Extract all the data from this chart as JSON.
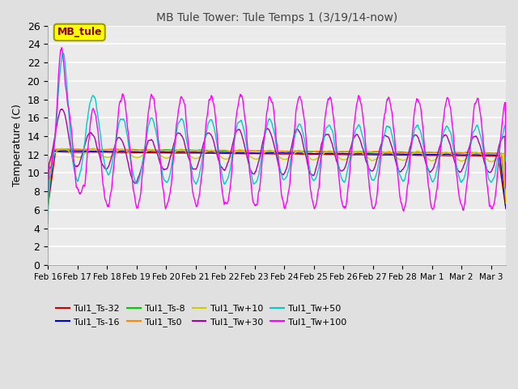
{
  "title": "MB Tule Tower: Tule Temps 1 (3/19/14-now)",
  "ylabel": "Temperature (C)",
  "xlabel": "",
  "ylim": [
    0,
    26
  ],
  "yticks": [
    0,
    2,
    4,
    6,
    8,
    10,
    12,
    14,
    16,
    18,
    20,
    22,
    24,
    26
  ],
  "x_tick_labels": [
    "Feb 16",
    "Feb 17",
    "Feb 18",
    "Feb 19",
    "Feb 20",
    "Feb 21",
    "Feb 22",
    "Feb 23",
    "Feb 24",
    "Feb 25",
    "Feb 26",
    "Feb 27",
    "Feb 28",
    "Mar 1",
    "Mar 2",
    "Mar 3"
  ],
  "legend_box_text": "MB_tule",
  "legend_box_color": "#ffff00",
  "legend_box_border": "#999900",
  "legend_box_text_color": "#8b0000",
  "series": [
    {
      "label": "Tul1_Ts-32",
      "color": "#cc0000"
    },
    {
      "label": "Tul1_Ts-16",
      "color": "#0000cc"
    },
    {
      "label": "Tul1_Ts-8",
      "color": "#00cc00"
    },
    {
      "label": "Tul1_Ts0",
      "color": "#ff8800"
    },
    {
      "label": "Tul1_Tw+10",
      "color": "#cccc00"
    },
    {
      "label": "Tul1_Tw+30",
      "color": "#aa00aa"
    },
    {
      "label": "Tul1_Tw+50",
      "color": "#00cccc"
    },
    {
      "label": "Tul1_Tw+100",
      "color": "#ff00ff"
    }
  ],
  "bg_color": "#e0e0e0",
  "plot_bg": "#ebebeb",
  "grid_color": "#ffffff",
  "title_color": "#444444",
  "n_points": 900,
  "days": 15.5,
  "figsize": [
    6.4,
    4.8
  ],
  "dpi": 100
}
